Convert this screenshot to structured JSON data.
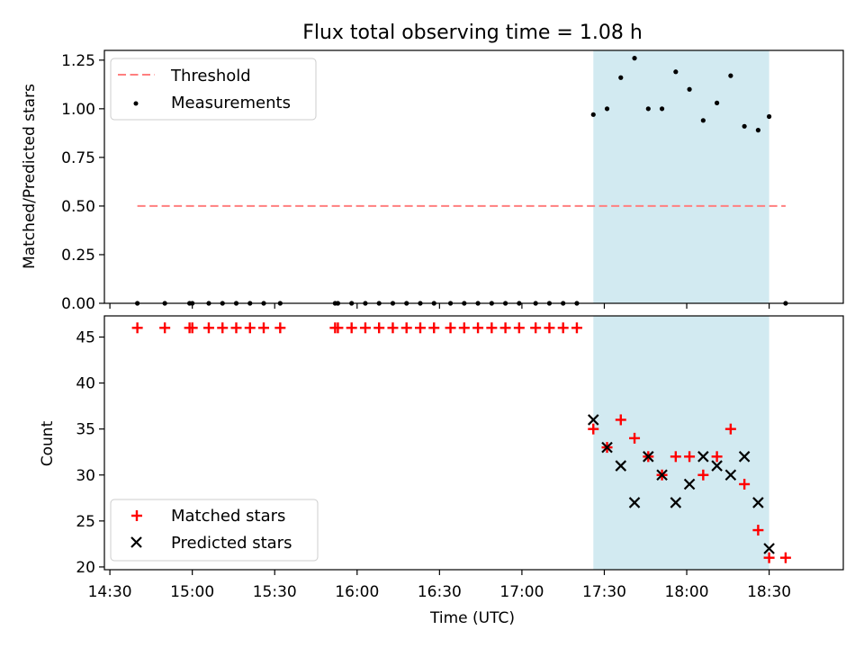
{
  "chart_data": [
    {
      "type": "scatter",
      "title": "Flux total observing time = 1.08 h",
      "xlabel": "",
      "ylabel": "Matched/Predicted stars",
      "ylim": [
        0,
        1.3
      ],
      "xlim": [
        "14:28",
        "18:57"
      ],
      "yticks": [
        "0.00",
        "0.25",
        "0.50",
        "0.75",
        "1.00",
        "1.25"
      ],
      "shaded_region": {
        "from": "17:26",
        "to": "18:30",
        "color": "#add8e6"
      },
      "legend_placement": "upper-left",
      "threshold": {
        "name": "Threshold",
        "value": 0.5,
        "from": "14:40",
        "to": "18:36",
        "color": "#ff7f7f"
      },
      "series": [
        {
          "name": "Measurements",
          "color": "#000000",
          "points": [
            [
              "14:40",
              0
            ],
            [
              "14:50",
              0
            ],
            [
              "14:59",
              0
            ],
            [
              "15:00",
              0
            ],
            [
              "15:06",
              0
            ],
            [
              "15:11",
              0
            ],
            [
              "15:16",
              0
            ],
            [
              "15:21",
              0
            ],
            [
              "15:26",
              0
            ],
            [
              "15:32",
              0
            ],
            [
              "15:52",
              0
            ],
            [
              "15:53",
              0
            ],
            [
              "15:58",
              0
            ],
            [
              "16:03",
              0
            ],
            [
              "16:08",
              0
            ],
            [
              "16:13",
              0
            ],
            [
              "16:18",
              0
            ],
            [
              "16:23",
              0
            ],
            [
              "16:28",
              0
            ],
            [
              "16:34",
              0
            ],
            [
              "16:39",
              0
            ],
            [
              "16:44",
              0
            ],
            [
              "16:49",
              0
            ],
            [
              "16:54",
              0
            ],
            [
              "16:59",
              0
            ],
            [
              "17:05",
              0
            ],
            [
              "17:10",
              0
            ],
            [
              "17:15",
              0
            ],
            [
              "17:20",
              0
            ],
            [
              "17:26",
              0.97
            ],
            [
              "17:31",
              1.0
            ],
            [
              "17:36",
              1.16
            ],
            [
              "17:41",
              1.26
            ],
            [
              "17:46",
              1.0
            ],
            [
              "17:51",
              1.0
            ],
            [
              "17:56",
              1.19
            ],
            [
              "18:01",
              1.1
            ],
            [
              "18:06",
              0.94
            ],
            [
              "18:11",
              1.03
            ],
            [
              "18:16",
              1.17
            ],
            [
              "18:21",
              0.91
            ],
            [
              "18:26",
              0.89
            ],
            [
              "18:30",
              0.96
            ],
            [
              "18:36",
              0
            ]
          ]
        }
      ]
    },
    {
      "type": "scatter",
      "title": "",
      "xlabel": "Time (UTC)",
      "ylabel": "Count",
      "ylim": [
        19.7,
        47.3
      ],
      "xlim": [
        "14:28",
        "18:57"
      ],
      "xticks": [
        "14:30",
        "15:00",
        "15:30",
        "16:00",
        "16:30",
        "17:00",
        "17:30",
        "18:00",
        "18:30"
      ],
      "yticks": [
        "20",
        "25",
        "30",
        "35",
        "40",
        "45"
      ],
      "shaded_region": {
        "from": "17:26",
        "to": "18:30",
        "color": "#add8e6"
      },
      "legend_placement": "lower-left",
      "series": [
        {
          "name": "Matched stars",
          "marker": "plus",
          "color": "#ff0000",
          "points": [
            [
              "14:40",
              46
            ],
            [
              "14:50",
              46
            ],
            [
              "14:59",
              46
            ],
            [
              "15:00",
              46
            ],
            [
              "15:06",
              46
            ],
            [
              "15:11",
              46
            ],
            [
              "15:16",
              46
            ],
            [
              "15:21",
              46
            ],
            [
              "15:26",
              46
            ],
            [
              "15:32",
              46
            ],
            [
              "15:52",
              46
            ],
            [
              "15:53",
              46
            ],
            [
              "15:58",
              46
            ],
            [
              "16:03",
              46
            ],
            [
              "16:08",
              46
            ],
            [
              "16:13",
              46
            ],
            [
              "16:18",
              46
            ],
            [
              "16:23",
              46
            ],
            [
              "16:28",
              46
            ],
            [
              "16:34",
              46
            ],
            [
              "16:39",
              46
            ],
            [
              "16:44",
              46
            ],
            [
              "16:49",
              46
            ],
            [
              "16:54",
              46
            ],
            [
              "16:59",
              46
            ],
            [
              "17:05",
              46
            ],
            [
              "17:10",
              46
            ],
            [
              "17:15",
              46
            ],
            [
              "17:20",
              46
            ],
            [
              "17:26",
              35
            ],
            [
              "17:31",
              33
            ],
            [
              "17:36",
              36
            ],
            [
              "17:41",
              34
            ],
            [
              "17:46",
              32
            ],
            [
              "17:51",
              30
            ],
            [
              "17:56",
              32
            ],
            [
              "18:01",
              32
            ],
            [
              "18:06",
              30
            ],
            [
              "18:11",
              32
            ],
            [
              "18:16",
              35
            ],
            [
              "18:21",
              29
            ],
            [
              "18:26",
              24
            ],
            [
              "18:30",
              21
            ],
            [
              "18:36",
              21
            ]
          ]
        },
        {
          "name": "Predicted stars",
          "marker": "cross",
          "color": "#000000",
          "points": [
            [
              "17:26",
              36
            ],
            [
              "17:31",
              33
            ],
            [
              "17:36",
              31
            ],
            [
              "17:41",
              27
            ],
            [
              "17:46",
              32
            ],
            [
              "17:51",
              30
            ],
            [
              "17:56",
              27
            ],
            [
              "18:01",
              29
            ],
            [
              "18:06",
              32
            ],
            [
              "18:11",
              31
            ],
            [
              "18:16",
              30
            ],
            [
              "18:21",
              32
            ],
            [
              "18:26",
              27
            ],
            [
              "18:30",
              22
            ]
          ]
        }
      ]
    }
  ]
}
